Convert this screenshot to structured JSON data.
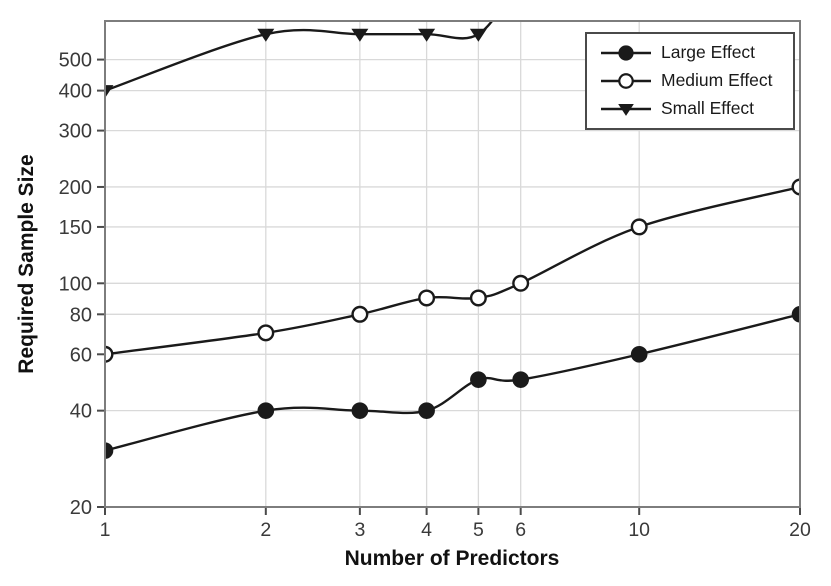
{
  "chart_data": {
    "type": "line",
    "title": "",
    "xlabel": "Number of Predictors",
    "ylabel": "Required Sample Size",
    "x_scale": "log",
    "y_scale": "log",
    "xlim": [
      1,
      20
    ],
    "ylim": [
      20,
      660
    ],
    "x_ticks": [
      1,
      2,
      3,
      4,
      5,
      6,
      10,
      20
    ],
    "y_ticks": [
      20,
      40,
      60,
      80,
      100,
      150,
      200,
      300,
      400,
      500
    ],
    "grid": true,
    "x": [
      1,
      2,
      3,
      4,
      5,
      6,
      10,
      20
    ],
    "series": [
      {
        "name": "Large Effect",
        "marker": "filled-circle",
        "values": [
          30,
          40,
          40,
          40,
          50,
          50,
          60,
          80
        ]
      },
      {
        "name": "Medium Effect",
        "marker": "open-circle",
        "values": [
          60,
          70,
          80,
          90,
          90,
          100,
          150,
          200
        ]
      },
      {
        "name": "Small Effect",
        "marker": "filled-triangle-down",
        "values": [
          400,
          600,
          600,
          600,
          600,
          null,
          null,
          null
        ],
        "continues_above_ylim": true,
        "offscale_continuation": {
          "x": 6,
          "y": 900
        }
      }
    ],
    "legend": {
      "position": "top-right",
      "border": true
    },
    "colors": {
      "line": "#1a1a1a",
      "marker_fill": "#1a1a1a",
      "marker_open_fill": "#ffffff",
      "grid": "#d9d9d9",
      "frame": "#7d7d7d",
      "tick": "#4a4a4a",
      "tick_label": "#3a3a3a",
      "background": "#ffffff"
    }
  }
}
